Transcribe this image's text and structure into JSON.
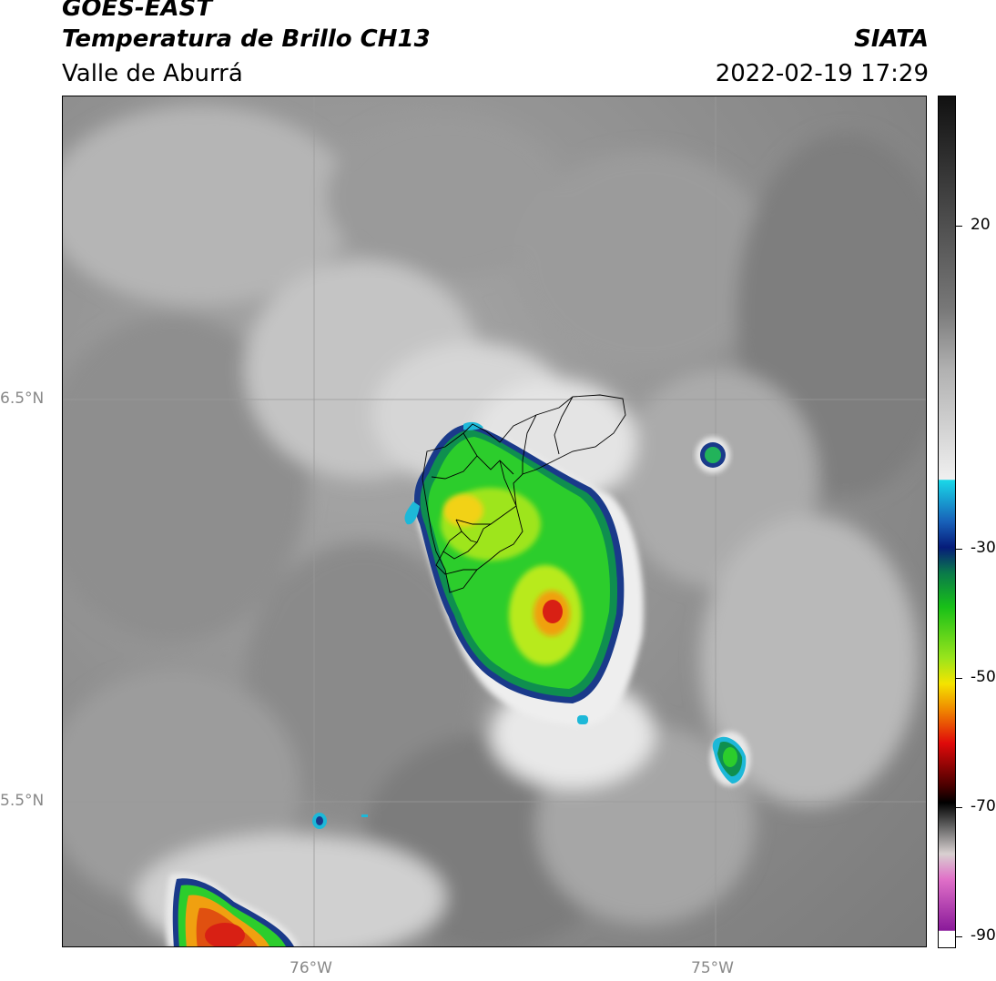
{
  "header": {
    "line1": "GOES-EAST",
    "line2": "Temperatura de Brillo CH13",
    "line3": "Valle de Aburrá",
    "org": "SIATA",
    "datetime": "2022-02-19 17:29"
  },
  "map": {
    "lat_labels": [
      "6.5°N",
      "5.5°N"
    ],
    "lon_labels": [
      "76°W",
      "75°W"
    ]
  },
  "colorbar": {
    "tick_labels": [
      "20",
      "-30",
      "-50",
      "-70",
      "-90"
    ],
    "colors": {
      "warm_gray": "#8a8a8a",
      "cold_cyan": "#19c3e0",
      "green": "#22cc22",
      "yellow": "#f0e600",
      "red": "#e01818",
      "magenta": "#cc3fbf"
    }
  }
}
